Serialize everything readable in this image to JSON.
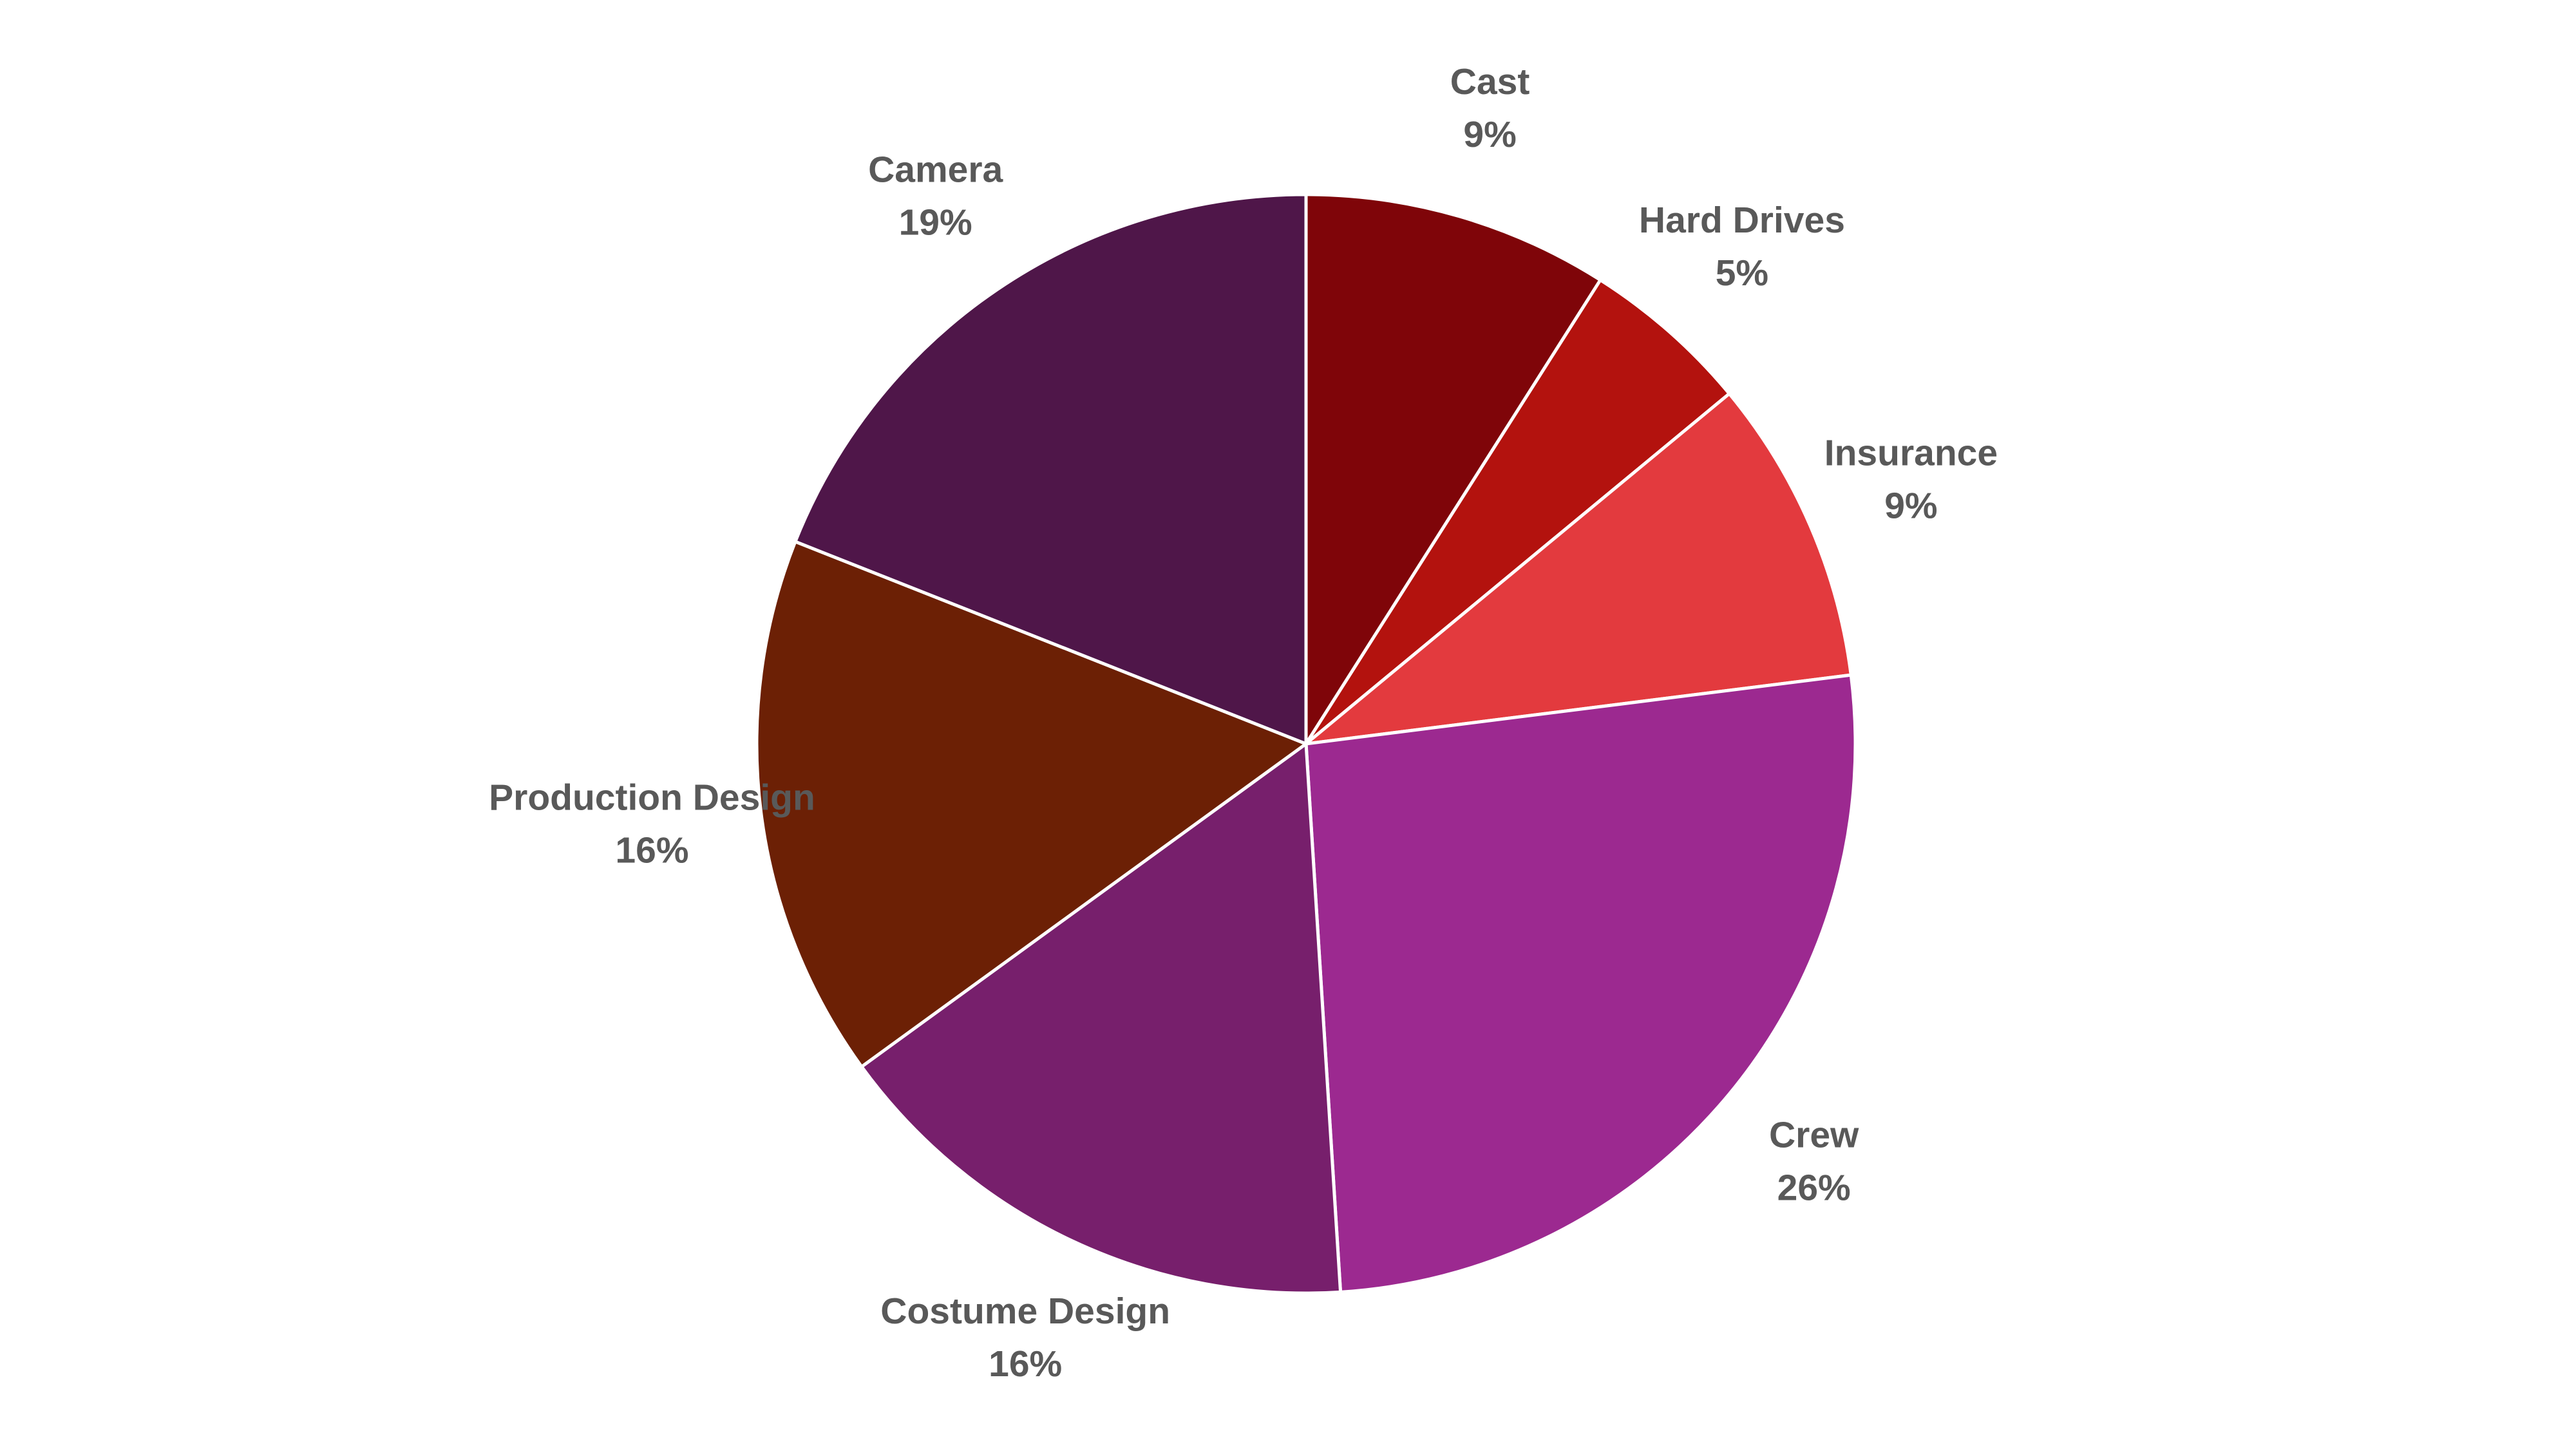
{
  "chart_data": {
    "type": "pie",
    "categories": [
      "Cast",
      "Hard Drives",
      "Insurance",
      "Crew",
      "Costume Design",
      "Production Design",
      "Camera"
    ],
    "values": [
      9,
      5,
      9,
      26,
      16,
      16,
      19
    ],
    "value_labels": [
      "9%",
      "5%",
      "9%",
      "26%",
      "16%",
      "16%",
      "19%"
    ],
    "colors": [
      "#7f0509",
      "#b3120e",
      "#e33a3e",
      "#9c2990",
      "#771f6c",
      "#6c2005",
      "#4f1649"
    ]
  }
}
